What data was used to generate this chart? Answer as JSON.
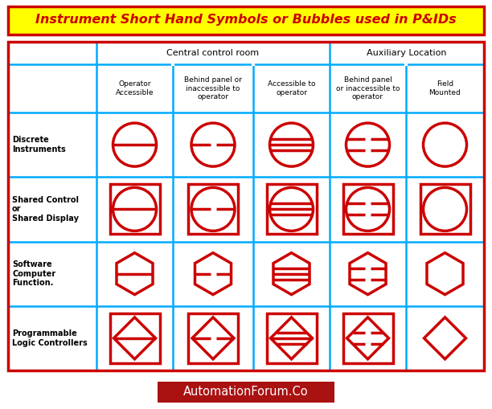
{
  "title": "Instrument Short Hand Symbols or Bubbles used in P&IDs",
  "title_bg": "#FFFF00",
  "title_text_color": "#CC0000",
  "outer_border_color": "#CC0000",
  "table_border_color": "#00AAFF",
  "symbol_color": "#CC0000",
  "lw_symbol": 2.5,
  "lw_table": 1.8,
  "lw_outer": 2.5,
  "bg_color": "#FFFFFF",
  "footer_bg": "#AA1111",
  "footer_text": "AutomationForum.Co",
  "footer_text_color": "#FFFFFF",
  "col_headers_row1": [
    "Central control room",
    "Auxiliary Location"
  ],
  "col_headers_row2": [
    "Operator\nAccessible",
    "Behind panel or\ninaccessible to\noperator",
    "Accessible to\noperator",
    "Behind panel\nor inaccessible to\noperator",
    "Field\nMounted"
  ],
  "row_labels": [
    "Discrete\nInstruments",
    "Shared Control\nor\nShared Display",
    "Software\nComputer\nFunction.",
    "Programmable\nLogic Controllers"
  ]
}
